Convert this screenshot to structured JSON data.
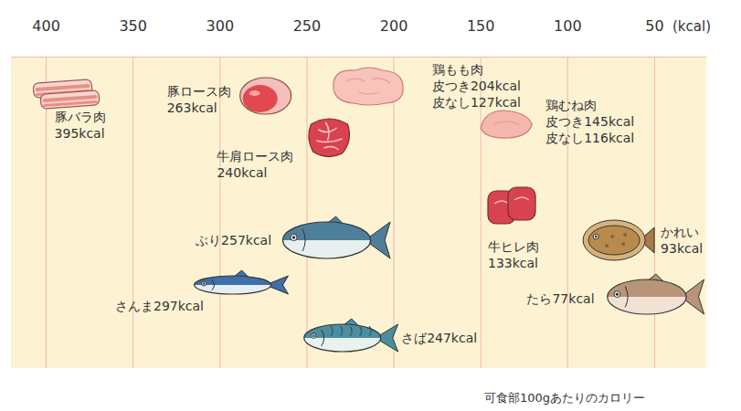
{
  "chart_data": {
    "type": "scatter",
    "xlabel": "(kcal)",
    "note": "可食部100gあたりのカロリー",
    "xlim": [
      420,
      20
    ],
    "xticks": [
      400,
      350,
      300,
      250,
      200,
      150,
      100,
      50
    ],
    "grid": true,
    "data_labels": true,
    "categories": [
      "豚バラ肉",
      "豚ロース肉",
      "牛肩ロース肉",
      "鶏もも肉",
      "鶏むね肉",
      "牛ヒレ肉",
      "ぶり",
      "さんま",
      "さば",
      "かれい",
      "たら"
    ],
    "values": [
      395,
      263,
      240,
      204,
      145,
      133,
      257,
      297,
      247,
      93,
      77
    ],
    "value_labels": [
      "395kcal",
      "263kcal",
      "240kcal",
      "皮つき204kcal",
      "皮つき145kcal",
      "133kcal",
      "257kcal",
      "297kcal",
      "247kcal",
      "93kcal",
      "77kcal"
    ],
    "skinless_values": [
      null,
      null,
      null,
      127,
      116,
      null,
      null,
      null,
      null,
      null,
      null
    ],
    "skinless_value_labels": [
      null,
      null,
      null,
      "皮なし127kcal",
      "皮なし116kcal",
      null,
      null,
      null,
      null,
      null,
      null
    ]
  }
}
